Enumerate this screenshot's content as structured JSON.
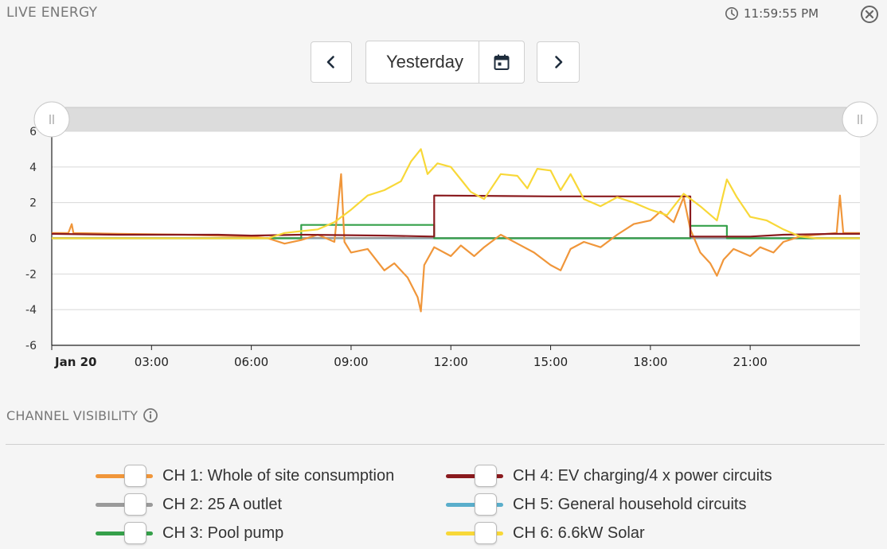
{
  "header": {
    "title": "LIVE ENERGY",
    "time": "11:59:55 PM"
  },
  "date_nav": {
    "selected": "Yesterday"
  },
  "channel_visibility": {
    "title": "CHANNEL VISIBILITY"
  },
  "colors": {
    "ch1": "#f0963a",
    "ch2": "#9a9a9a",
    "ch3": "#35a04a",
    "ch4": "#8a1a1e",
    "ch5": "#5aaecb",
    "ch6": "#f8d838",
    "grid": "#d8d8d8",
    "navigator": "#dcdcdc"
  },
  "legend": [
    {
      "label": "CH 1: Whole of site consumption",
      "color_key": "ch1"
    },
    {
      "label": "CH 2: 25 A outlet",
      "color_key": "ch2"
    },
    {
      "label": "CH 3: Pool pump",
      "color_key": "ch3"
    },
    {
      "label": "CH 4: EV charging/4 x power circuits",
      "color_key": "ch4"
    },
    {
      "label": "CH 5: General household circuits",
      "color_key": "ch5"
    },
    {
      "label": "CH 6: 6.6kW Solar",
      "color_key": "ch6"
    }
  ],
  "chart_data": {
    "type": "line",
    "x_unit": "hours",
    "xlim": [
      0,
      24.3
    ],
    "ylim": [
      -6,
      6
    ],
    "yticks": [
      6,
      4,
      2,
      0,
      -2,
      -4,
      -6
    ],
    "xticks": [
      {
        "x": 0,
        "label": "Jan 20"
      },
      {
        "x": 3,
        "label": "03:00"
      },
      {
        "x": 6,
        "label": "06:00"
      },
      {
        "x": 9,
        "label": "09:00"
      },
      {
        "x": 12,
        "label": "12:00"
      },
      {
        "x": 15,
        "label": "15:00"
      },
      {
        "x": 18,
        "label": "18:00"
      },
      {
        "x": 21,
        "label": "21:00"
      }
    ],
    "grid": true,
    "series": [
      {
        "name": "CH 1: Whole of site consumption",
        "color_key": "ch1",
        "points": [
          [
            0,
            0.3
          ],
          [
            0.5,
            0.3
          ],
          [
            0.6,
            0.8
          ],
          [
            0.65,
            0.3
          ],
          [
            2,
            0.25
          ],
          [
            4,
            0.2
          ],
          [
            6,
            0.1
          ],
          [
            6.5,
            0
          ],
          [
            7,
            -0.3
          ],
          [
            7.5,
            -0.1
          ],
          [
            8,
            0.2
          ],
          [
            8.5,
            -0.2
          ],
          [
            8.7,
            3.6
          ],
          [
            8.8,
            -0.2
          ],
          [
            9,
            -0.8
          ],
          [
            9.5,
            -0.6
          ],
          [
            10,
            -1.8
          ],
          [
            10.3,
            -1.4
          ],
          [
            10.7,
            -2.2
          ],
          [
            11,
            -3.3
          ],
          [
            11.1,
            -4.1
          ],
          [
            11.2,
            -1.5
          ],
          [
            11.5,
            -0.5
          ],
          [
            12,
            -1
          ],
          [
            12.3,
            -0.4
          ],
          [
            12.7,
            -1
          ],
          [
            13,
            -0.5
          ],
          [
            13.5,
            0.2
          ],
          [
            14,
            -0.3
          ],
          [
            14.5,
            -0.8
          ],
          [
            15,
            -1.5
          ],
          [
            15.3,
            -1.8
          ],
          [
            15.6,
            -0.6
          ],
          [
            16,
            -0.2
          ],
          [
            16.5,
            -0.5
          ],
          [
            17,
            0.2
          ],
          [
            17.5,
            0.8
          ],
          [
            18,
            1
          ],
          [
            18.3,
            1.5
          ],
          [
            18.7,
            0.9
          ],
          [
            19,
            2.3
          ],
          [
            19.2,
            0.5
          ],
          [
            19.5,
            -0.8
          ],
          [
            19.8,
            -1.4
          ],
          [
            20,
            -2.1
          ],
          [
            20.2,
            -1.2
          ],
          [
            20.5,
            -0.6
          ],
          [
            21,
            -1
          ],
          [
            21.3,
            -0.5
          ],
          [
            21.7,
            -0.8
          ],
          [
            22,
            -0.2
          ],
          [
            22.5,
            0.1
          ],
          [
            23,
            0.2
          ],
          [
            23.6,
            0.3
          ],
          [
            23.7,
            2.4
          ],
          [
            23.8,
            0.3
          ],
          [
            24.3,
            0.3
          ]
        ]
      },
      {
        "name": "CH 2: 25 A outlet",
        "color_key": "ch2",
        "points": [
          [
            0,
            0.02
          ],
          [
            24.3,
            0.02
          ]
        ]
      },
      {
        "name": "CH 3: Pool pump",
        "color_key": "ch3",
        "points": [
          [
            0,
            0
          ],
          [
            7.5,
            0
          ],
          [
            7.5,
            0.75
          ],
          [
            11.5,
            0.75
          ],
          [
            11.5,
            0
          ],
          [
            19.2,
            0
          ],
          [
            19.2,
            0.7
          ],
          [
            20.3,
            0.7
          ],
          [
            20.3,
            0
          ],
          [
            24.3,
            0
          ]
        ]
      },
      {
        "name": "CH 4: EV charging/4 x power circuits",
        "color_key": "ch4",
        "points": [
          [
            0,
            0.25
          ],
          [
            2,
            0.2
          ],
          [
            5,
            0.2
          ],
          [
            6,
            0.15
          ],
          [
            7.5,
            0.2
          ],
          [
            10,
            0.15
          ],
          [
            11.5,
            0.1
          ],
          [
            11.5,
            2.4
          ],
          [
            15,
            2.35
          ],
          [
            19.2,
            2.35
          ],
          [
            19.2,
            0.1
          ],
          [
            21,
            0.1
          ],
          [
            22,
            0.2
          ],
          [
            23.5,
            0.25
          ],
          [
            24.3,
            0.25
          ]
        ]
      },
      {
        "name": "CH 5: General household circuits",
        "color_key": "ch5",
        "points": [
          [
            0,
            0
          ],
          [
            24.3,
            0
          ]
        ]
      },
      {
        "name": "CH 6: 6.6kW Solar",
        "color_key": "ch6",
        "points": [
          [
            0,
            0
          ],
          [
            6.5,
            0
          ],
          [
            7,
            0.3
          ],
          [
            7.5,
            0.4
          ],
          [
            8,
            0.5
          ],
          [
            8.5,
            0.9
          ],
          [
            9,
            1.6
          ],
          [
            9.5,
            2.4
          ],
          [
            10,
            2.7
          ],
          [
            10.5,
            3.2
          ],
          [
            10.8,
            4.3
          ],
          [
            11.1,
            5.0
          ],
          [
            11.3,
            3.6
          ],
          [
            11.6,
            4.2
          ],
          [
            12,
            4.0
          ],
          [
            12.3,
            3.3
          ],
          [
            12.6,
            2.6
          ],
          [
            13,
            2.2
          ],
          [
            13.5,
            3.6
          ],
          [
            14,
            3.5
          ],
          [
            14.3,
            2.8
          ],
          [
            14.6,
            3.9
          ],
          [
            15,
            3.8
          ],
          [
            15.3,
            2.7
          ],
          [
            15.6,
            3.6
          ],
          [
            16,
            2.2
          ],
          [
            16.5,
            1.8
          ],
          [
            17,
            2.3
          ],
          [
            17.5,
            2.0
          ],
          [
            18,
            1.6
          ],
          [
            18.5,
            1.3
          ],
          [
            19,
            2.5
          ],
          [
            19.5,
            1.8
          ],
          [
            20,
            1.0
          ],
          [
            20.3,
            3.3
          ],
          [
            20.6,
            2.3
          ],
          [
            21,
            1.2
          ],
          [
            21.5,
            1.0
          ],
          [
            22,
            0.5
          ],
          [
            22.5,
            0.1
          ],
          [
            23,
            0
          ],
          [
            24.3,
            0
          ]
        ]
      }
    ]
  }
}
